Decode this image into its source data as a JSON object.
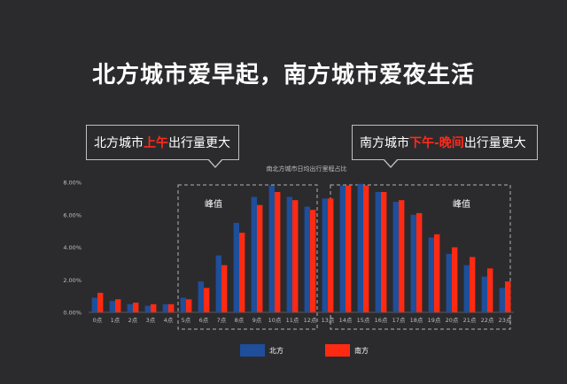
{
  "headline": "北方城市爱早起，南方城市爱夜生活",
  "callouts": {
    "north": {
      "pre": "北方城市",
      "highlight": "上午",
      "post": "出行量更大"
    },
    "south": {
      "pre": "南方城市",
      "highlight": "下午-晚间",
      "post": "出行量更大"
    }
  },
  "peaks": {
    "left": "峰值",
    "right": "峰值"
  },
  "colors": {
    "north": "#1f4e9a",
    "south": "#ff2a12",
    "background": "#2b2b2e"
  },
  "chart_data": {
    "type": "bar",
    "title": "南北方城市日均出行里程占比",
    "categories": [
      "0点",
      "1点",
      "2点",
      "3点",
      "4点",
      "5点",
      "6点",
      "7点",
      "8点",
      "9点",
      "10点",
      "11点",
      "12点",
      "13点",
      "14点",
      "15点",
      "16点",
      "17点",
      "18点",
      "19点",
      "20点",
      "21点",
      "22点",
      "23点"
    ],
    "series": [
      {
        "name": "北方",
        "values": [
          0.9,
          0.7,
          0.5,
          0.4,
          0.5,
          0.9,
          1.9,
          3.5,
          5.5,
          7.1,
          7.8,
          7.1,
          6.5,
          7.0,
          7.8,
          7.9,
          7.4,
          6.8,
          6.0,
          4.6,
          3.6,
          2.9,
          2.2,
          1.5
        ]
      },
      {
        "name": "南方",
        "values": [
          1.2,
          0.8,
          0.6,
          0.5,
          0.5,
          0.8,
          1.5,
          2.9,
          4.9,
          6.6,
          7.4,
          6.9,
          6.3,
          7.0,
          7.8,
          7.8,
          7.4,
          6.9,
          6.1,
          4.8,
          4.0,
          3.4,
          2.7,
          1.9
        ]
      }
    ],
    "y_ticks": [
      "0.00%",
      "2.00%",
      "4.00%",
      "6.00%",
      "8.00%"
    ],
    "ylim": [
      0,
      8
    ],
    "grid": false,
    "legend": "bottom-center"
  }
}
